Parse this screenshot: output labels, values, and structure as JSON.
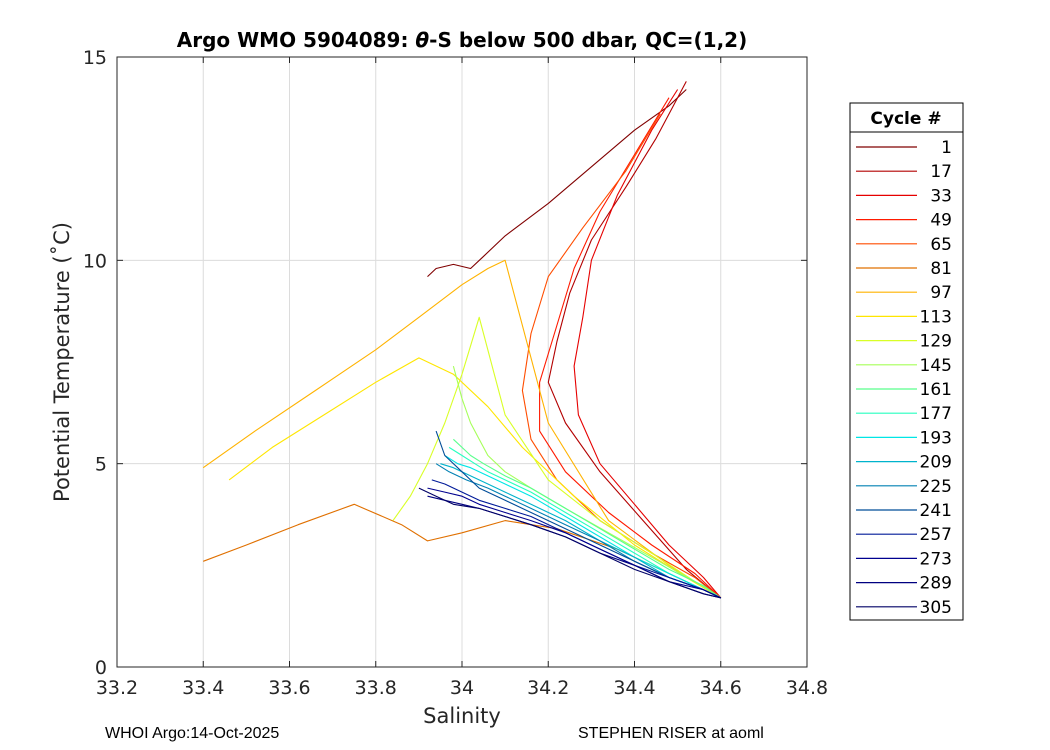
{
  "chart_data": {
    "type": "line",
    "title": {
      "prefix": "Argo WMO 5904089: ",
      "symbol": "θ",
      "suffix": "-S below 500 dbar,  QC=(1,2)"
    },
    "xlabel": "Salinity",
    "ylabel": "Potential Temperature (˚C)",
    "xlim": [
      33.2,
      34.8
    ],
    "ylim": [
      0,
      15
    ],
    "xticks": [
      33.2,
      33.4,
      33.6,
      33.8,
      34,
      34.2,
      34.4,
      34.6,
      34.8
    ],
    "xtick_labels": [
      "33.2",
      "33.4",
      "33.6",
      "33.8",
      "34",
      "34.2",
      "34.4",
      "34.6",
      "34.8"
    ],
    "yticks": [
      0,
      5,
      10,
      15
    ],
    "ytick_labels": [
      "0",
      "5",
      "10",
      "15"
    ],
    "grid": true,
    "legend": {
      "title": "Cycle #",
      "placement": "right",
      "entries": [
        {
          "label": "1",
          "color": "#800000"
        },
        {
          "label": "17",
          "color": "#b30000"
        },
        {
          "label": "33",
          "color": "#e60000"
        },
        {
          "label": "49",
          "color": "#ff1a00"
        },
        {
          "label": "65",
          "color": "#ff4d00"
        },
        {
          "label": "81",
          "color": "#e07000"
        },
        {
          "label": "97",
          "color": "#ffb300"
        },
        {
          "label": "113",
          "color": "#ffe600"
        },
        {
          "label": "129",
          "color": "#d9ff26"
        },
        {
          "label": "145",
          "color": "#a6ff59"
        },
        {
          "label": "161",
          "color": "#59ff8c"
        },
        {
          "label": "177",
          "color": "#26ffbf"
        },
        {
          "label": "193",
          "color": "#00e6e6"
        },
        {
          "label": "209",
          "color": "#00b3cc"
        },
        {
          "label": "225",
          "color": "#0080b3"
        },
        {
          "label": "241",
          "color": "#004d99"
        },
        {
          "label": "257",
          "color": "#001a99"
        },
        {
          "label": "273",
          "color": "#00008f"
        },
        {
          "label": "289",
          "color": "#000080"
        },
        {
          "label": "305",
          "color": "#000066"
        }
      ]
    },
    "series": [
      {
        "name": "1",
        "x": [
          33.92,
          33.94,
          33.98,
          34.02,
          34.05,
          34.1,
          34.2,
          34.3,
          34.4,
          34.48,
          34.52
        ],
        "y": [
          9.6,
          9.8,
          9.9,
          9.8,
          10.1,
          10.6,
          11.4,
          12.3,
          13.2,
          13.8,
          14.2
        ]
      },
      {
        "name": "17",
        "x": [
          34.52,
          34.45,
          34.38,
          34.3,
          34.25,
          34.22,
          34.2,
          34.24,
          34.32,
          34.42,
          34.52,
          34.6
        ],
        "y": [
          14.4,
          13.0,
          11.8,
          10.5,
          9.2,
          8.0,
          7.0,
          6.0,
          4.8,
          3.6,
          2.4,
          1.7
        ]
      },
      {
        "name": "33",
        "x": [
          34.5,
          34.44,
          34.36,
          34.3,
          34.28,
          34.26,
          34.27,
          34.32,
          34.4,
          34.48,
          34.56,
          34.6
        ],
        "y": [
          14.2,
          13.2,
          11.6,
          10.0,
          8.6,
          7.4,
          6.2,
          5.0,
          4.0,
          3.0,
          2.2,
          1.7
        ]
      },
      {
        "name": "49",
        "x": [
          34.48,
          34.4,
          34.32,
          34.26,
          34.22,
          34.18,
          34.18,
          34.24,
          34.34,
          34.44,
          34.54,
          34.6
        ],
        "y": [
          14.0,
          12.6,
          11.2,
          9.8,
          8.4,
          7.0,
          5.8,
          4.8,
          3.8,
          3.0,
          2.3,
          1.7
        ]
      },
      {
        "name": "65",
        "x": [
          34.46,
          34.38,
          34.28,
          34.2,
          34.16,
          34.14,
          34.16,
          34.22,
          34.32,
          34.44,
          34.54,
          34.6
        ],
        "y": [
          13.6,
          12.2,
          10.8,
          9.6,
          8.2,
          6.8,
          5.6,
          4.6,
          3.6,
          2.8,
          2.2,
          1.7
        ]
      },
      {
        "name": "81",
        "x": [
          33.4,
          33.5,
          33.62,
          33.75,
          33.86,
          33.92,
          34.0,
          34.1,
          34.22,
          34.36,
          34.48,
          34.58
        ],
        "y": [
          2.6,
          3.0,
          3.5,
          4.0,
          3.5,
          3.1,
          3.3,
          3.6,
          3.4,
          2.9,
          2.3,
          1.8
        ]
      },
      {
        "name": "97",
        "x": [
          33.4,
          33.52,
          33.66,
          33.8,
          33.9,
          34.0,
          34.06,
          34.1,
          34.2,
          34.34,
          34.48,
          34.6
        ],
        "y": [
          4.9,
          5.8,
          6.8,
          7.8,
          8.6,
          9.4,
          9.8,
          10.0,
          6.0,
          3.6,
          2.5,
          1.7
        ]
      },
      {
        "name": "113",
        "x": [
          33.46,
          33.56,
          33.68,
          33.8,
          33.9,
          33.98,
          34.06,
          34.14,
          34.26,
          34.4,
          34.52,
          34.6
        ],
        "y": [
          4.6,
          5.4,
          6.2,
          7.0,
          7.6,
          7.2,
          6.4,
          5.4,
          4.2,
          3.0,
          2.2,
          1.7
        ]
      },
      {
        "name": "129",
        "x": [
          33.84,
          33.88,
          33.92,
          33.96,
          34.0,
          34.04,
          34.1,
          34.2,
          34.32,
          34.44,
          34.54,
          34.6
        ],
        "y": [
          3.6,
          4.2,
          5.0,
          6.0,
          7.2,
          8.6,
          6.2,
          4.6,
          3.6,
          2.8,
          2.1,
          1.7
        ]
      },
      {
        "name": "145",
        "x": [
          33.98,
          34.0,
          34.02,
          34.04,
          34.06,
          34.1,
          34.16,
          34.24,
          34.34,
          34.44,
          34.54,
          34.6
        ],
        "y": [
          7.4,
          6.6,
          6.0,
          5.6,
          5.2,
          4.8,
          4.4,
          3.9,
          3.3,
          2.7,
          2.1,
          1.7
        ]
      },
      {
        "name": "161",
        "x": [
          33.98,
          34.0,
          34.02,
          34.05,
          34.1,
          34.16,
          34.24,
          34.32,
          34.4,
          34.48,
          34.56,
          34.6
        ],
        "y": [
          5.6,
          5.4,
          5.2,
          5.0,
          4.7,
          4.4,
          3.9,
          3.4,
          2.9,
          2.4,
          2.0,
          1.7
        ]
      },
      {
        "name": "177",
        "x": [
          33.97,
          34.0,
          34.03,
          34.06,
          34.1,
          34.16,
          34.24,
          34.32,
          34.4,
          34.48,
          34.56,
          34.6
        ],
        "y": [
          5.4,
          5.2,
          5.0,
          4.8,
          4.6,
          4.3,
          3.8,
          3.3,
          2.8,
          2.3,
          1.9,
          1.7
        ]
      },
      {
        "name": "193",
        "x": [
          33.96,
          33.99,
          34.02,
          34.06,
          34.1,
          34.16,
          34.24,
          34.32,
          34.4,
          34.48,
          34.56,
          34.6
        ],
        "y": [
          5.2,
          5.0,
          4.9,
          4.7,
          4.5,
          4.2,
          3.7,
          3.2,
          2.7,
          2.3,
          1.9,
          1.7
        ]
      },
      {
        "name": "209",
        "x": [
          33.95,
          33.98,
          34.02,
          34.06,
          34.1,
          34.16,
          34.24,
          34.32,
          34.4,
          34.48,
          34.56,
          34.6
        ],
        "y": [
          5.0,
          4.9,
          4.7,
          4.5,
          4.3,
          4.0,
          3.6,
          3.1,
          2.7,
          2.2,
          1.9,
          1.7
        ]
      },
      {
        "name": "225",
        "x": [
          33.94,
          33.97,
          34.01,
          34.06,
          34.1,
          34.16,
          34.24,
          34.32,
          34.4,
          34.48,
          34.56,
          34.6
        ],
        "y": [
          5.0,
          4.8,
          4.6,
          4.4,
          4.2,
          3.9,
          3.5,
          3.1,
          2.6,
          2.2,
          1.9,
          1.7
        ]
      },
      {
        "name": "241",
        "x": [
          33.94,
          33.96,
          34.0,
          34.04,
          34.1,
          34.16,
          34.24,
          34.32,
          34.4,
          34.48,
          34.56,
          34.6
        ],
        "y": [
          5.8,
          5.2,
          4.8,
          4.4,
          4.1,
          3.8,
          3.4,
          3.0,
          2.6,
          2.2,
          1.9,
          1.7
        ]
      },
      {
        "name": "257",
        "x": [
          33.93,
          33.96,
          34.0,
          34.04,
          34.1,
          34.16,
          34.24,
          34.32,
          34.4,
          34.48,
          34.56,
          34.6
        ],
        "y": [
          4.6,
          4.5,
          4.3,
          4.1,
          3.9,
          3.7,
          3.3,
          2.9,
          2.5,
          2.2,
          1.9,
          1.7
        ]
      },
      {
        "name": "273",
        "x": [
          33.92,
          33.96,
          34.0,
          34.04,
          34.1,
          34.16,
          34.24,
          34.32,
          34.4,
          34.48,
          34.56,
          34.6
        ],
        "y": [
          4.4,
          4.3,
          4.2,
          4.0,
          3.8,
          3.6,
          3.3,
          2.9,
          2.5,
          2.1,
          1.9,
          1.7
        ]
      },
      {
        "name": "289",
        "x": [
          33.92,
          33.96,
          34.0,
          34.04,
          34.1,
          34.16,
          34.24,
          34.32,
          34.4,
          34.48,
          34.56,
          34.6
        ],
        "y": [
          4.2,
          4.1,
          4.0,
          3.9,
          3.7,
          3.5,
          3.2,
          2.8,
          2.5,
          2.1,
          1.8,
          1.7
        ]
      },
      {
        "name": "305",
        "x": [
          33.9,
          33.94,
          33.98,
          34.04,
          34.1,
          34.16,
          34.24,
          34.32,
          34.4,
          34.48,
          34.56,
          34.6
        ],
        "y": [
          4.4,
          4.2,
          4.0,
          3.9,
          3.7,
          3.5,
          3.2,
          2.8,
          2.4,
          2.1,
          1.8,
          1.7
        ]
      }
    ]
  },
  "footer": {
    "left": "WHOI Argo:14-Oct-2025",
    "right": "STEPHEN RISER at aoml"
  }
}
